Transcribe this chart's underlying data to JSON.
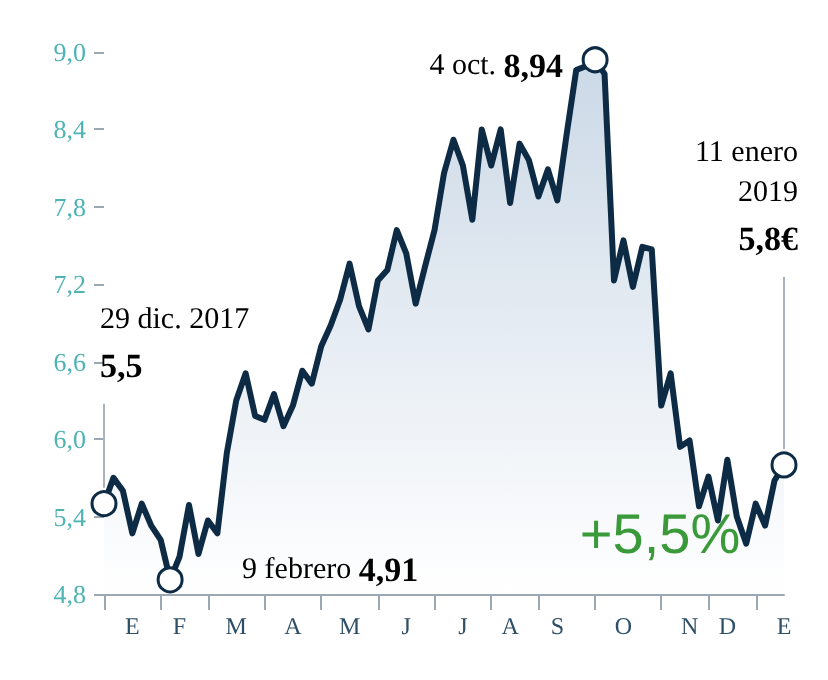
{
  "chart_data": {
    "type": "area",
    "categories": [
      null,
      null,
      null,
      "E",
      null,
      null,
      null,
      null,
      "F",
      null,
      null,
      null,
      null,
      null,
      "M",
      null,
      null,
      null,
      null,
      null,
      "A",
      null,
      null,
      null,
      null,
      null,
      "M",
      null,
      null,
      null,
      null,
      null,
      "J",
      null,
      null,
      null,
      null,
      null,
      "J",
      null,
      null,
      null,
      null,
      "A",
      null,
      null,
      null,
      null,
      "S",
      null,
      null,
      null,
      null,
      null,
      null,
      "O",
      null,
      null,
      null,
      null,
      null,
      null,
      "N",
      null,
      null,
      null,
      "D",
      null,
      null,
      null,
      null,
      null,
      "E"
    ],
    "series": [
      {
        "color": "#0d2b45",
        "values": [
          5.5,
          5.7,
          5.6,
          5.27,
          5.5,
          5.33,
          5.22,
          4.91,
          5.09,
          5.49,
          5.11,
          5.37,
          5.27,
          5.89,
          6.3,
          6.51,
          6.18,
          6.15,
          6.35,
          6.1,
          6.26,
          6.53,
          6.43,
          6.72,
          6.88,
          7.08,
          7.36,
          7.03,
          6.85,
          7.23,
          7.31,
          7.62,
          7.44,
          7.05,
          7.34,
          7.62,
          8.06,
          8.32,
          8.12,
          7.7,
          8.4,
          8.12,
          8.4,
          7.83,
          8.29,
          8.16,
          7.88,
          8.09,
          7.85,
          8.37,
          8.86,
          8.89,
          8.94,
          8.83,
          7.23,
          7.54,
          7.18,
          7.49,
          7.47,
          6.26,
          6.51,
          5.94,
          5.99,
          5.48,
          5.71,
          5.37,
          5.84,
          5.4,
          5.19,
          5.5,
          5.33,
          5.68,
          5.8
        ]
      }
    ],
    "ylim": [
      4.8,
      9.0
    ],
    "yticks": [
      {
        "value": 4.8,
        "label": "4,8"
      },
      {
        "value": 5.4,
        "label": "5,4"
      },
      {
        "value": 6.0,
        "label": "6,0"
      },
      {
        "value": 6.6,
        "label": "6,6"
      },
      {
        "value": 7.2,
        "label": "7,2"
      },
      {
        "value": 7.8,
        "label": "7,8"
      },
      {
        "value": 8.4,
        "label": "8,4"
      },
      {
        "value": 9.0,
        "label": "9,0"
      }
    ],
    "grid": false,
    "annotations": [
      "29 dic. 2017 5,5",
      "9 febrero 4,91",
      "4 oct. 8,94",
      "11 enero 2019 5,8€",
      "+5,5%"
    ]
  }
}
